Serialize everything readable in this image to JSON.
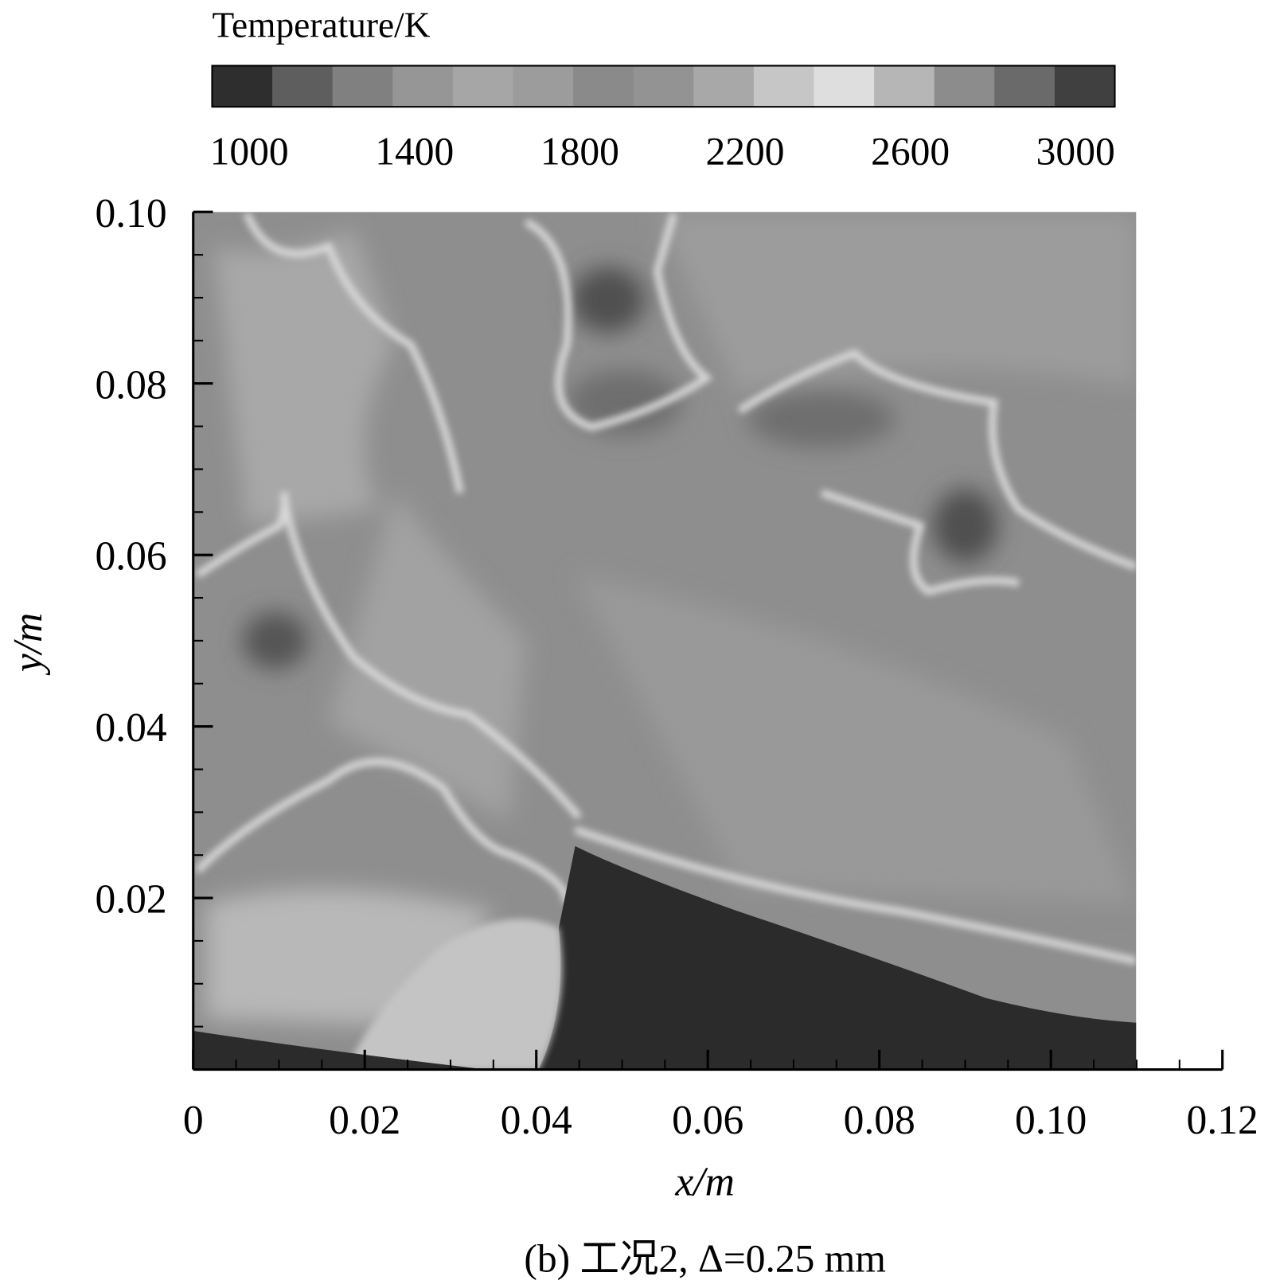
{
  "chart_data": {
    "type": "contour",
    "caption": "(b) 工况2, Δ=0.25 mm",
    "x_label": "x/m",
    "y_label": "y/m",
    "xlim": [
      0,
      0.12
    ],
    "ylim": [
      0,
      0.1
    ],
    "xticks": [
      0,
      0.02,
      0.04,
      0.06,
      0.08,
      {
        "value": 0.1,
        "label": "0.10"
      },
      0.12
    ],
    "yticks": [
      0.02,
      0.04,
      0.06,
      0.08,
      {
        "value": 0.1,
        "label": "0.10"
      }
    ],
    "colorbar": {
      "label": "Temperature/K",
      "lim": [
        910,
        3095
      ],
      "ticks": [
        1000,
        1400,
        1800,
        2200,
        2600,
        3000
      ],
      "colors": [
        "#2e2e2e",
        "#5e5e5e",
        "#808080",
        "#969696",
        "#a6a6a6",
        "#9c9c9c",
        "#8a8a8a",
        "#939393",
        "#a8a8a8",
        "#c6c6c6",
        "#dedede",
        "#b6b6b6",
        "#8c8c8c",
        "#6a6a6a",
        "#404040"
      ]
    }
  }
}
